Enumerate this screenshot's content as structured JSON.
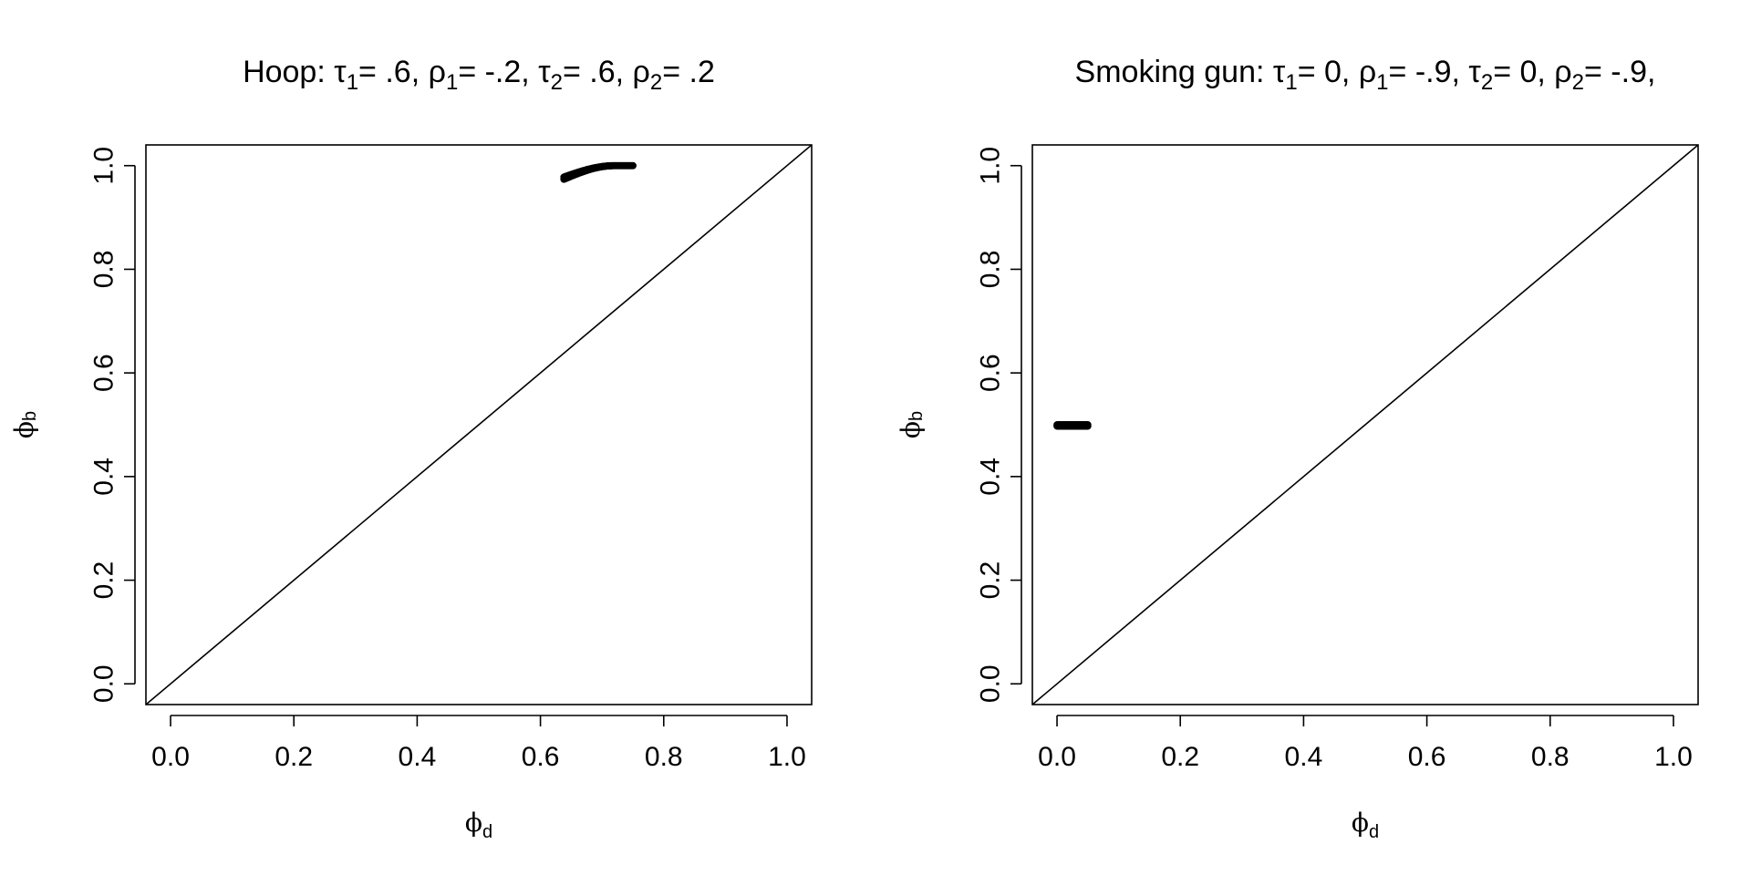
{
  "chart_data": [
    {
      "type": "scatter",
      "title": {
        "prefix": "Hoop: ",
        "params": [
          {
            "sym": "τ",
            "sub": "1",
            "val": "= .6, "
          },
          {
            "sym": "ρ",
            "sub": "1",
            "val": "= -.2, "
          },
          {
            "sym": "τ",
            "sub": "2",
            "val": "= .6, "
          },
          {
            "sym": "ρ",
            "sub": "2",
            "val": "= .2"
          }
        ]
      },
      "xlabel": {
        "sym": "ϕ",
        "sub": "d"
      },
      "ylabel": {
        "sym": "ϕ",
        "sub": "b"
      },
      "xlim": [
        0,
        1
      ],
      "ylim": [
        0,
        1
      ],
      "xticks": [
        "0.0",
        "0.2",
        "0.4",
        "0.6",
        "0.8",
        "1.0"
      ],
      "yticks": [
        "0.0",
        "0.2",
        "0.4",
        "0.6",
        "0.8",
        "1.0"
      ],
      "reference_line": "y = x",
      "points": {
        "x_from": 0.638,
        "x_to": 0.75,
        "y_from": 0.978,
        "y_to": 1.0,
        "n": 80
      }
    },
    {
      "type": "scatter",
      "title": {
        "prefix": "Smoking gun: ",
        "params": [
          {
            "sym": "τ",
            "sub": "1",
            "val": "= 0, "
          },
          {
            "sym": "ρ",
            "sub": "1",
            "val": "= -.9, "
          },
          {
            "sym": "τ",
            "sub": "2",
            "val": "= 0, "
          },
          {
            "sym": "ρ",
            "sub": "2",
            "val": "= -.9,"
          }
        ]
      },
      "xlabel": {
        "sym": "ϕ",
        "sub": "d"
      },
      "ylabel": {
        "sym": "ϕ",
        "sub": "b"
      },
      "xlim": [
        0,
        1
      ],
      "ylim": [
        0,
        1
      ],
      "xticks": [
        "0.0",
        "0.2",
        "0.4",
        "0.6",
        "0.8",
        "1.0"
      ],
      "yticks": [
        "0.0",
        "0.2",
        "0.4",
        "0.6",
        "0.8",
        "1.0"
      ],
      "reference_line": "y = x",
      "points": {
        "x_from": 0.0,
        "x_to": 0.05,
        "y_from": 0.5,
        "y_to": 0.5,
        "n": 60
      }
    }
  ]
}
